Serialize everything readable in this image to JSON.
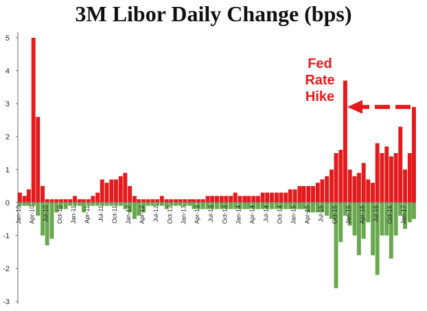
{
  "chart_data": {
    "type": "bar",
    "title": "3M Libor Daily Change (bps)",
    "xlabel": "",
    "ylabel": "",
    "ylim": [
      -3,
      5
    ],
    "y_ticks": [
      "5",
      "4",
      "3",
      "2",
      "1",
      "0",
      "-1",
      "-2",
      "-3"
    ],
    "x_tick_labels": [
      "Jan-10",
      "Apr-10",
      "Jul-10",
      "Oct-10",
      "Jan-11",
      "Apr-11",
      "Jul-11",
      "Oct-11",
      "Jan-12",
      "Apr-12",
      "Jul-12",
      "Oct-12",
      "Jan-13",
      "Apr-13",
      "Jul-13",
      "Oct-13",
      "Jan-14",
      "Apr-14",
      "Jul-14",
      "Oct-14",
      "Jan-15",
      "Apr-15",
      "Jul-15",
      "Oct-15",
      "Jan-16",
      "Apr-16",
      "Jul-16",
      "Oct-16",
      "Jan-17"
    ],
    "grid": false,
    "legend": "none",
    "colors": {
      "positive": "#e41a1c",
      "negative": "#6aa84f",
      "annotation": "#e41a1c"
    },
    "annotation": {
      "lines": [
        "Fed",
        "Rate",
        "Hike"
      ],
      "x": "Dec-15",
      "arrow": "points left to the Dec-15 spike"
    },
    "x_label_dates": [
      "2010-01",
      "2010-04",
      "2010-07",
      "2010-10",
      "2011-01",
      "2011-04",
      "2011-07",
      "2011-10",
      "2012-01",
      "2012-04",
      "2012-07",
      "2012-10",
      "2013-01",
      "2013-04",
      "2013-07",
      "2013-10",
      "2014-01",
      "2014-04",
      "2014-07",
      "2014-10",
      "2015-01",
      "2015-04",
      "2015-07",
      "2015-10",
      "2016-01",
      "2016-04",
      "2016-07",
      "2016-10",
      "2017-01"
    ],
    "series_dates": [
      "2010-01",
      "2010-02",
      "2010-03",
      "2010-04",
      "2010-05",
      "2010-06",
      "2010-07",
      "2010-08",
      "2010-09",
      "2010-10",
      "2010-11",
      "2010-12",
      "2011-01",
      "2011-02",
      "2011-03",
      "2011-04",
      "2011-05",
      "2011-06",
      "2011-07",
      "2011-08",
      "2011-09",
      "2011-10",
      "2011-11",
      "2011-12",
      "2012-01",
      "2012-02",
      "2012-03",
      "2012-04",
      "2012-05",
      "2012-06",
      "2012-07",
      "2012-08",
      "2012-09",
      "2012-10",
      "2012-11",
      "2012-12",
      "2013-01",
      "2013-02",
      "2013-03",
      "2013-04",
      "2013-05",
      "2013-06",
      "2013-07",
      "2013-08",
      "2013-09",
      "2013-10",
      "2013-11",
      "2013-12",
      "2014-01",
      "2014-02",
      "2014-03",
      "2014-04",
      "2014-05",
      "2014-06",
      "2014-07",
      "2014-08",
      "2014-09",
      "2014-10",
      "2014-11",
      "2014-12",
      "2015-01",
      "2015-02",
      "2015-03",
      "2015-04",
      "2015-05",
      "2015-06",
      "2015-07",
      "2015-08",
      "2015-09",
      "2015-10",
      "2015-11",
      "2015-12",
      "2016-01",
      "2016-02",
      "2016-03",
      "2016-04",
      "2016-05",
      "2016-06",
      "2016-07",
      "2016-08",
      "2016-09",
      "2016-10",
      "2016-11",
      "2016-12",
      "2017-01",
      "2017-02",
      "2017-03"
    ],
    "series_max": [
      0.3,
      0.2,
      0.4,
      5.0,
      2.6,
      0.5,
      0.1,
      0.1,
      0.1,
      0.1,
      0.1,
      0.1,
      0.2,
      0.1,
      0.1,
      0.1,
      0.2,
      0.3,
      0.7,
      0.6,
      0.7,
      0.7,
      0.8,
      0.9,
      0.5,
      0.2,
      0.1,
      0.1,
      0.1,
      0.1,
      0.1,
      0.2,
      0.1,
      0.1,
      0.1,
      0.1,
      0.1,
      0.1,
      0.1,
      0.1,
      0.1,
      0.2,
      0.2,
      0.2,
      0.2,
      0.2,
      0.2,
      0.3,
      0.2,
      0.2,
      0.2,
      0.2,
      0.2,
      0.3,
      0.3,
      0.3,
      0.3,
      0.3,
      0.3,
      0.4,
      0.4,
      0.5,
      0.5,
      0.5,
      0.5,
      0.6,
      0.7,
      0.8,
      1.0,
      1.5,
      1.6,
      3.7,
      1.0,
      0.8,
      0.9,
      1.2,
      0.7,
      0.6,
      1.8,
      1.5,
      1.7,
      1.4,
      1.5,
      2.3,
      1.0,
      1.5,
      2.9
    ],
    "series_min": [
      -0.1,
      -0.1,
      -0.1,
      -0.1,
      -0.4,
      -1.0,
      -1.3,
      -1.1,
      -0.3,
      -0.2,
      -0.2,
      -0.1,
      -0.1,
      -0.1,
      -0.3,
      -0.1,
      -0.1,
      -0.1,
      -0.1,
      -0.1,
      -0.1,
      -0.1,
      -0.1,
      -0.2,
      -0.3,
      -0.5,
      -0.4,
      -0.3,
      -0.1,
      -0.1,
      -0.1,
      -0.1,
      -0.2,
      -0.1,
      -0.1,
      -0.1,
      -0.1,
      -0.1,
      -0.2,
      -0.2,
      -0.2,
      -0.2,
      -0.2,
      -0.2,
      -0.2,
      -0.2,
      -0.2,
      -0.2,
      -0.2,
      -0.2,
      -0.2,
      -0.2,
      -0.2,
      -0.2,
      -0.2,
      -0.2,
      -0.2,
      -0.2,
      -0.2,
      -0.2,
      -0.2,
      -0.2,
      -0.2,
      -0.3,
      -0.3,
      -0.3,
      -0.3,
      -0.4,
      -0.5,
      -2.6,
      -1.2,
      -0.4,
      -0.7,
      -1.0,
      -1.6,
      -1.1,
      -0.6,
      -1.6,
      -2.2,
      -1.0,
      -1.0,
      -1.7,
      -1.0,
      -0.4,
      -0.8,
      -0.6,
      -0.5
    ]
  }
}
